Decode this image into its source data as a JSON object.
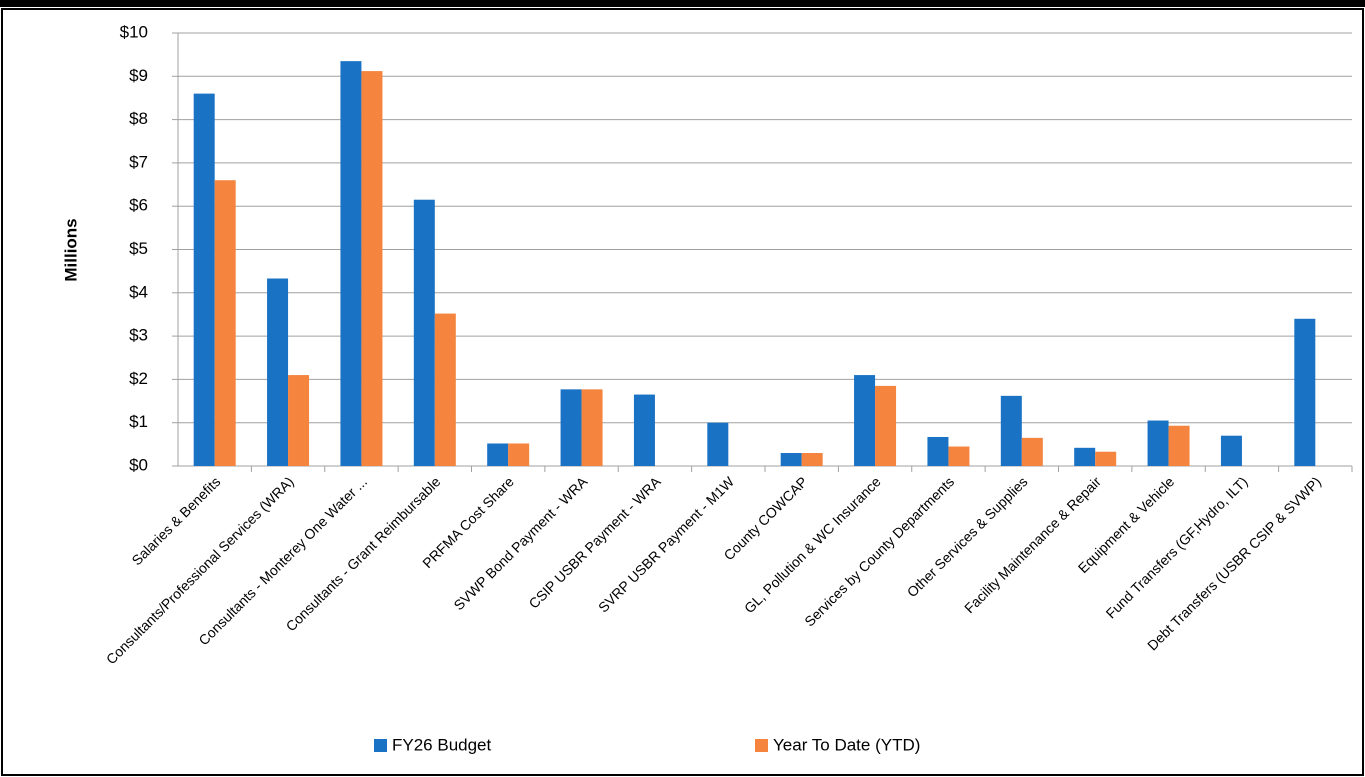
{
  "chart_data": {
    "type": "bar",
    "ylabel": "Millions",
    "categories": [
      "Salaries & Benefits",
      "Consultants/Professional Services (WRA)",
      "Consultants - Monterey One Water ...",
      "Consultants - Grant Reimbursable",
      "PRFMA Cost Share",
      "SVWP Bond Payment - WRA",
      "CSIP USBR Payment - WRA",
      "SVRP USBR Payment - M1W",
      "County COWCAP",
      "GL, Pollution & WC Insurance",
      "Services by County Departments",
      "Other Services & Supplies",
      "Facility Maintenance & Repair",
      "Equipment & Vehicle",
      "Fund Transfers (GF,Hydro, ILT)",
      "Debt Transfers (USBR CSIP & SVWP)"
    ],
    "series": [
      {
        "name": "FY26 Budget",
        "color": "#1a72c4",
        "values": [
          8.6,
          4.33,
          9.35,
          6.15,
          0.52,
          1.77,
          1.65,
          1.0,
          0.3,
          2.1,
          0.67,
          1.62,
          0.42,
          1.05,
          0.7,
          3.4
        ]
      },
      {
        "name": "Year To Date (YTD)",
        "color": "#f5843e",
        "values": [
          6.6,
          2.1,
          9.12,
          3.52,
          0.52,
          1.77,
          0,
          0,
          0.3,
          1.85,
          0.45,
          0.65,
          0.33,
          0.93,
          0,
          0
        ]
      }
    ],
    "ylim": [
      0,
      10
    ],
    "yticks": [
      {
        "value": 0,
        "label": "$0"
      },
      {
        "value": 1,
        "label": "$1"
      },
      {
        "value": 2,
        "label": "$2"
      },
      {
        "value": 3,
        "label": "$3"
      },
      {
        "value": 4,
        "label": "$4"
      },
      {
        "value": 5,
        "label": "$5"
      },
      {
        "value": 6,
        "label": "$6"
      },
      {
        "value": 7,
        "label": "$7"
      },
      {
        "value": 8,
        "label": "$8"
      },
      {
        "value": 9,
        "label": "$9"
      },
      {
        "value": 10,
        "label": "$10"
      }
    ],
    "grid": true,
    "legend": "bottom"
  }
}
